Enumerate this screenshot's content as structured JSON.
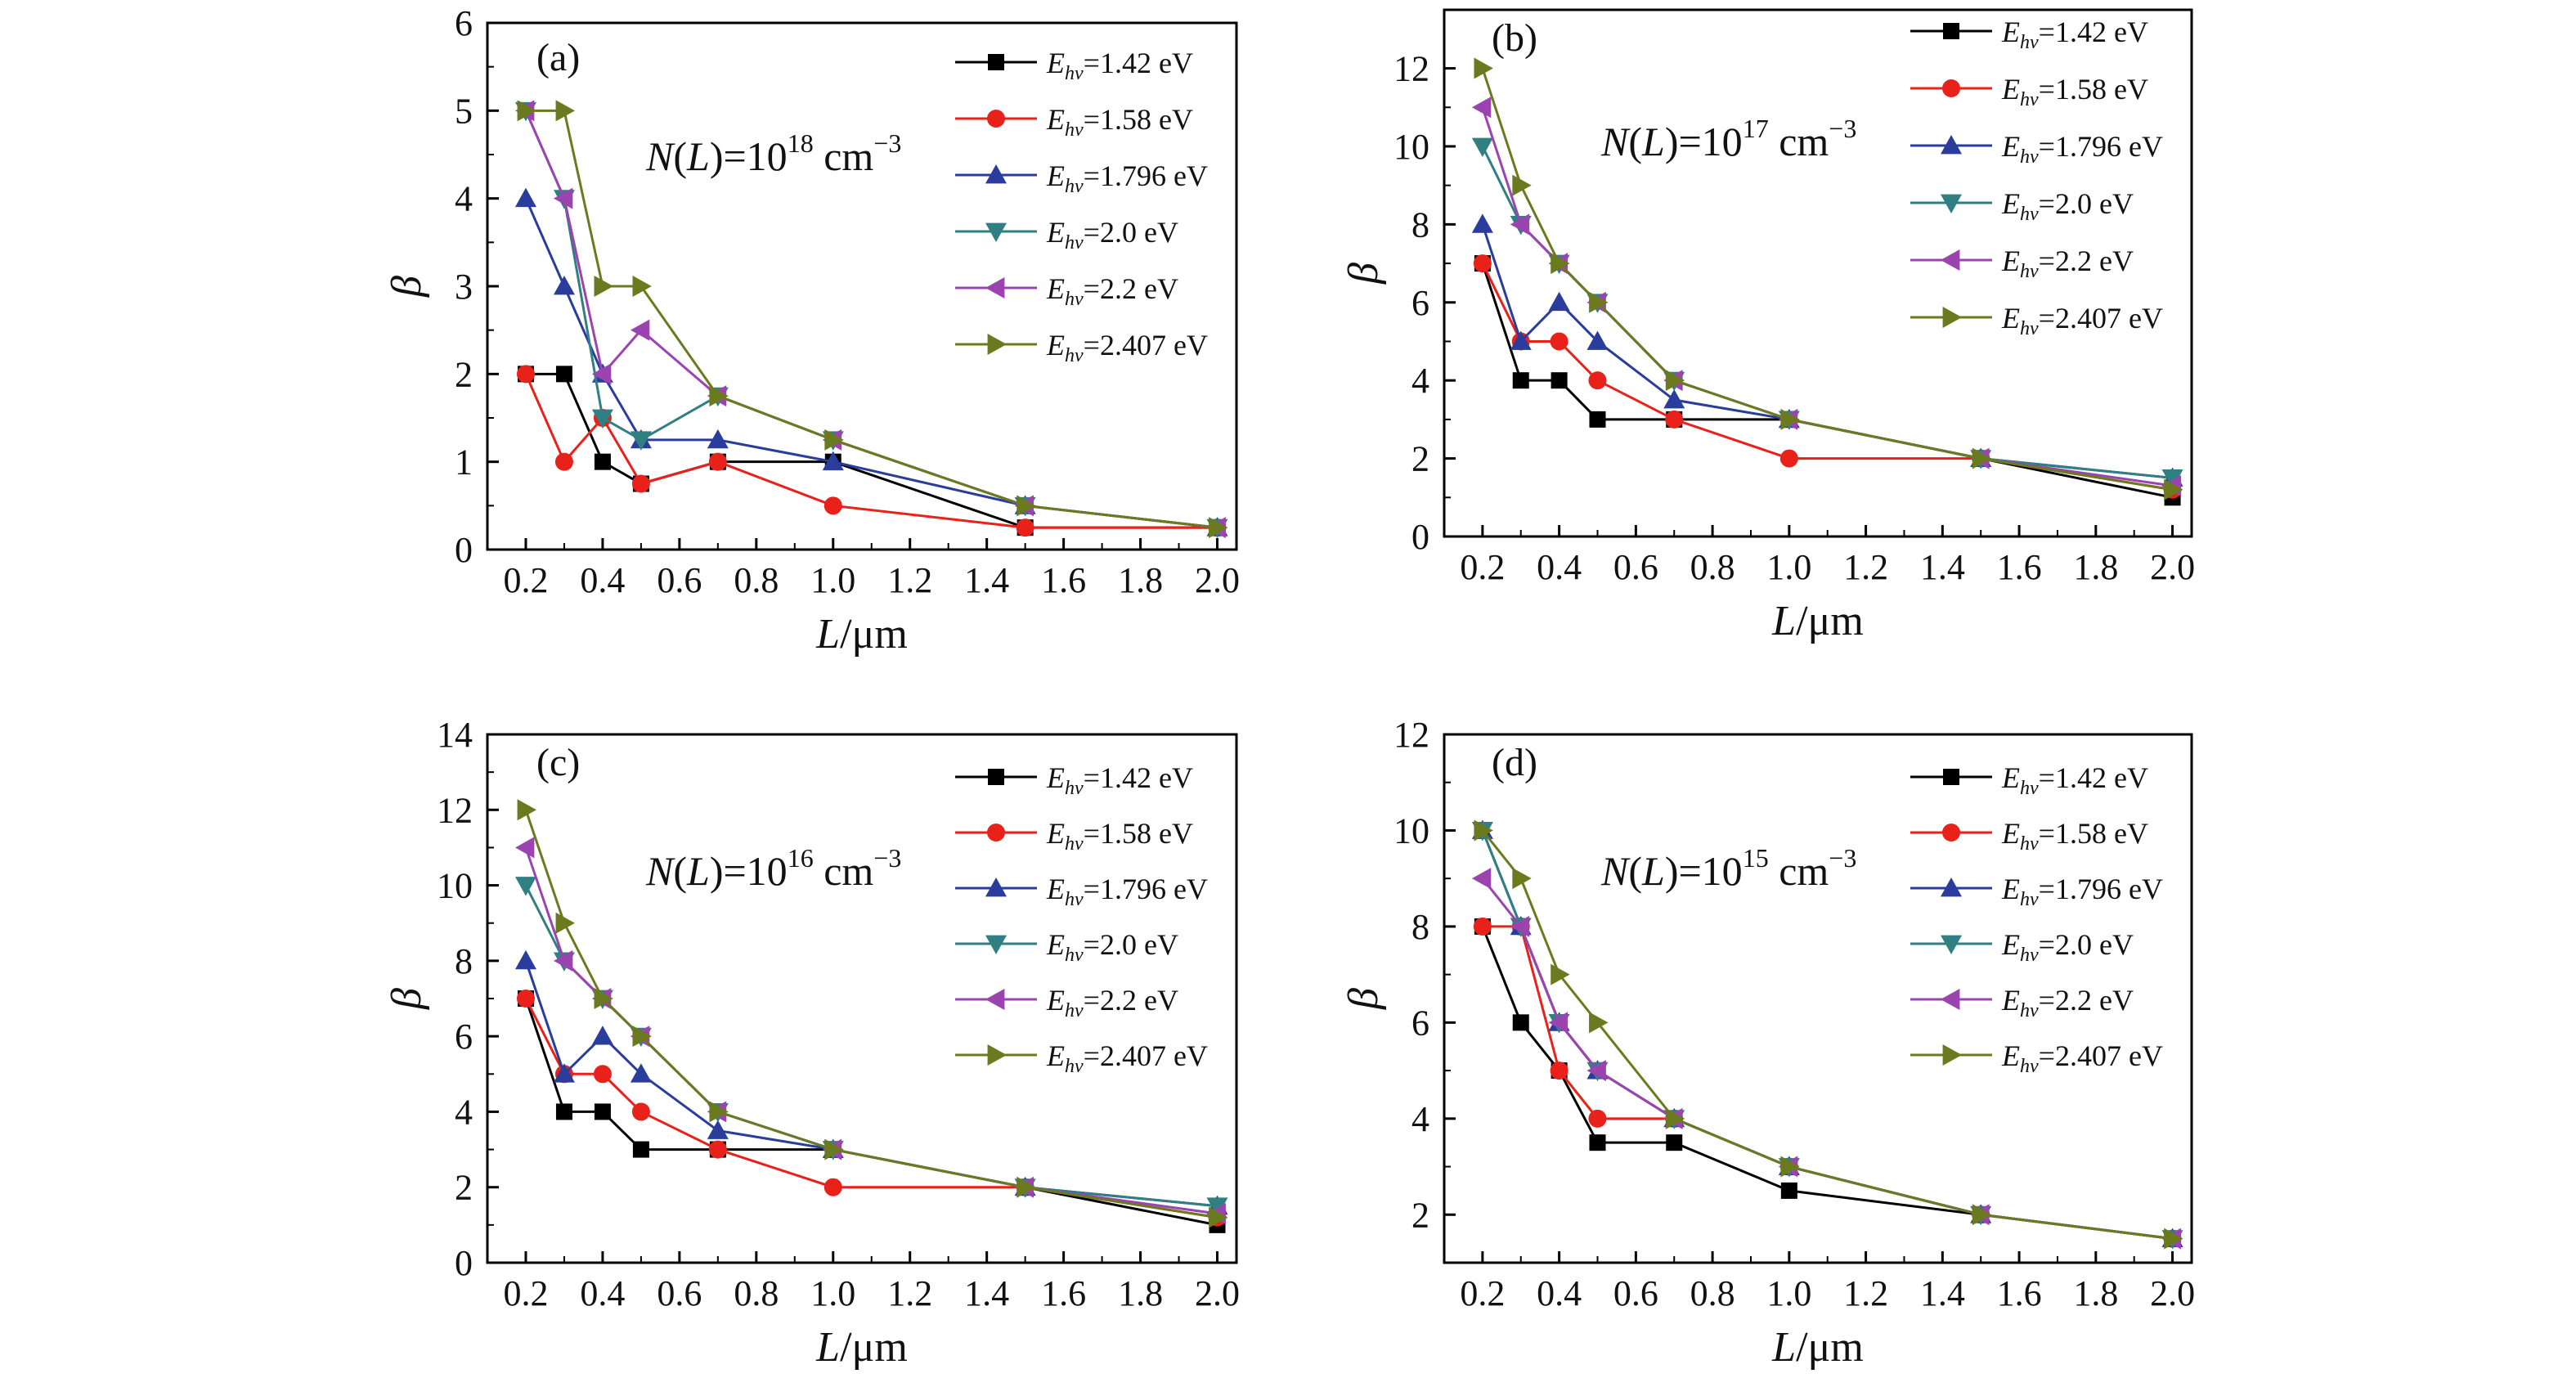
{
  "chart_data": [
    {
      "type": "line",
      "panel_label": "(a)",
      "annotation": {
        "prefix": "N(L)=10",
        "exp": "18",
        "unit": " cm",
        "unit_exp": "−3"
      },
      "xlabel": "L/μm",
      "ylabel": "β",
      "xlim": [
        0.1,
        2.05
      ],
      "ylim": [
        0,
        6
      ],
      "xticks": [
        "0.2",
        "0.4",
        "0.6",
        "0.8",
        "1.0",
        "1.2",
        "1.4",
        "1.6",
        "1.8",
        "2.0"
      ],
      "yticks": [
        "0",
        "1",
        "2",
        "3",
        "4",
        "5",
        "6"
      ],
      "x": [
        0.2,
        0.3,
        0.4,
        0.5,
        0.7,
        1.0,
        1.5,
        2.0
      ],
      "legend_position": "top-right",
      "series": [
        {
          "sym": "E",
          "sub": "hv",
          "rest": "=1.42 eV",
          "color": "#000000",
          "marker": "square",
          "values": [
            2,
            2,
            1,
            0.75,
            1,
            1,
            0.25,
            0.25
          ]
        },
        {
          "sym": "E",
          "sub": "hv",
          "rest": "=1.58 eV",
          "color": "#e8211b",
          "marker": "circle",
          "values": [
            2,
            1,
            1.5,
            0.75,
            1,
            0.5,
            0.25,
            0.25
          ]
        },
        {
          "sym": "E",
          "sub": "hv",
          "rest": "=1.796 eV",
          "color": "#2a3c9c",
          "marker": "triangle-up",
          "values": [
            4,
            3,
            2,
            1.25,
            1.25,
            1,
            0.5,
            0.25
          ]
        },
        {
          "sym": "E",
          "sub": "hv",
          "rest": "=2.0 eV",
          "color": "#2f7f83",
          "marker": "triangle-down",
          "values": [
            5,
            4,
            1.5,
            1.25,
            1.75,
            1.25,
            0.5,
            0.25
          ]
        },
        {
          "sym": "E",
          "sub": "hv",
          "rest": "=2.2 eV",
          "color": "#9b44b0",
          "marker": "triangle-left",
          "values": [
            5,
            4,
            2,
            2.5,
            1.75,
            1.25,
            0.5,
            0.25
          ]
        },
        {
          "sym": "E",
          "sub": "hv",
          "rest": "=2.407 eV",
          "color": "#6b7a1f",
          "marker": "triangle-right",
          "values": [
            5,
            5,
            3,
            3,
            1.75,
            1.25,
            0.5,
            0.25
          ]
        }
      ]
    },
    {
      "type": "line",
      "panel_label": "(b)",
      "annotation": {
        "prefix": "N(L)=10",
        "exp": "17",
        "unit": " cm",
        "unit_exp": "−3"
      },
      "xlabel": "L/μm",
      "ylabel": "β",
      "xlim": [
        0.1,
        2.05
      ],
      "ylim": [
        0,
        13.5
      ],
      "xticks": [
        "0.2",
        "0.4",
        "0.6",
        "0.8",
        "1.0",
        "1.2",
        "1.4",
        "1.6",
        "1.8",
        "2.0"
      ],
      "yticks": [
        "0",
        "2",
        "4",
        "6",
        "8",
        "10",
        "12"
      ],
      "x": [
        0.2,
        0.3,
        0.4,
        0.5,
        0.7,
        1.0,
        1.5,
        2.0
      ],
      "legend_position": "top-right",
      "series": [
        {
          "sym": "E",
          "sub": "hv",
          "rest": "=1.42 eV",
          "color": "#000000",
          "marker": "square",
          "values": [
            7,
            4,
            4,
            3,
            3,
            3,
            2,
            1
          ]
        },
        {
          "sym": "E",
          "sub": "hv",
          "rest": "=1.58 eV",
          "color": "#e8211b",
          "marker": "circle",
          "values": [
            7,
            5,
            5,
            4,
            3,
            2,
            2,
            1.2
          ]
        },
        {
          "sym": "E",
          "sub": "hv",
          "rest": "=1.796 eV",
          "color": "#2a3c9c",
          "marker": "triangle-up",
          "values": [
            8,
            5,
            6,
            5,
            3.5,
            3,
            2,
            1.5
          ]
        },
        {
          "sym": "E",
          "sub": "hv",
          "rest": "=2.0 eV",
          "color": "#2f7f83",
          "marker": "triangle-down",
          "values": [
            10,
            8,
            7,
            6,
            4,
            3,
            2,
            1.5
          ]
        },
        {
          "sym": "E",
          "sub": "hv",
          "rest": "=2.2 eV",
          "color": "#9b44b0",
          "marker": "triangle-left",
          "values": [
            11,
            8,
            7,
            6,
            4,
            3,
            2,
            1.3
          ]
        },
        {
          "sym": "E",
          "sub": "hv",
          "rest": "=2.407 eV",
          "color": "#6b7a1f",
          "marker": "triangle-right",
          "values": [
            12,
            9,
            7,
            6,
            4,
            3,
            2,
            1.2
          ]
        }
      ]
    },
    {
      "type": "line",
      "panel_label": "(c)",
      "annotation": {
        "prefix": "N(L)=10",
        "exp": "16",
        "unit": " cm",
        "unit_exp": "−3"
      },
      "xlabel": "L/μm",
      "ylabel": "β",
      "xlim": [
        0.1,
        2.05
      ],
      "ylim": [
        0,
        14
      ],
      "xticks": [
        "0.2",
        "0.4",
        "0.6",
        "0.8",
        "1.0",
        "1.2",
        "1.4",
        "1.6",
        "1.8",
        "2.0"
      ],
      "yticks": [
        "0",
        "2",
        "4",
        "6",
        "8",
        "10",
        "12",
        "14"
      ],
      "x": [
        0.2,
        0.3,
        0.4,
        0.5,
        0.7,
        1.0,
        1.5,
        2.0
      ],
      "legend_position": "top-right",
      "series": [
        {
          "sym": "E",
          "sub": "hv",
          "rest": "=1.42 eV",
          "color": "#000000",
          "marker": "square",
          "values": [
            7,
            4,
            4,
            3,
            3,
            3,
            2,
            1
          ]
        },
        {
          "sym": "E",
          "sub": "hv",
          "rest": "=1.58 eV",
          "color": "#e8211b",
          "marker": "circle",
          "values": [
            7,
            5,
            5,
            4,
            3,
            2,
            2,
            1.2
          ]
        },
        {
          "sym": "E",
          "sub": "hv",
          "rest": "=1.796 eV",
          "color": "#2a3c9c",
          "marker": "triangle-up",
          "values": [
            8,
            5,
            6,
            5,
            3.5,
            3,
            2,
            1.5
          ]
        },
        {
          "sym": "E",
          "sub": "hv",
          "rest": "=2.0 eV",
          "color": "#2f7f83",
          "marker": "triangle-down",
          "values": [
            10,
            8,
            7,
            6,
            4,
            3,
            2,
            1.5
          ]
        },
        {
          "sym": "E",
          "sub": "hv",
          "rest": "=2.2 eV",
          "color": "#9b44b0",
          "marker": "triangle-left",
          "values": [
            11,
            8,
            7,
            6,
            4,
            3,
            2,
            1.3
          ]
        },
        {
          "sym": "E",
          "sub": "hv",
          "rest": "=2.407 eV",
          "color": "#6b7a1f",
          "marker": "triangle-right",
          "values": [
            12,
            9,
            7,
            6,
            4,
            3,
            2,
            1.2
          ]
        }
      ]
    },
    {
      "type": "line",
      "panel_label": "(d)",
      "annotation": {
        "prefix": "N(L)=10",
        "exp": "15",
        "unit": " cm",
        "unit_exp": "−3"
      },
      "xlabel": "L/μm",
      "ylabel": "β",
      "xlim": [
        0.1,
        2.05
      ],
      "ylim": [
        1,
        12
      ],
      "xticks": [
        "0.2",
        "0.4",
        "0.6",
        "0.8",
        "1.0",
        "1.2",
        "1.4",
        "1.6",
        "1.8",
        "2.0"
      ],
      "yticks": [
        "2",
        "4",
        "6",
        "8",
        "10",
        "12"
      ],
      "x": [
        0.2,
        0.3,
        0.4,
        0.5,
        0.7,
        1.0,
        1.5,
        2.0
      ],
      "legend_position": "top-right",
      "series": [
        {
          "sym": "E",
          "sub": "hv",
          "rest": "=1.42 eV",
          "color": "#000000",
          "marker": "square",
          "values": [
            8,
            6,
            5,
            3.5,
            3.5,
            2.5,
            2,
            1.5
          ]
        },
        {
          "sym": "E",
          "sub": "hv",
          "rest": "=1.58 eV",
          "color": "#e8211b",
          "marker": "circle",
          "values": [
            8,
            8,
            5,
            4,
            4,
            3,
            2,
            1.5
          ]
        },
        {
          "sym": "E",
          "sub": "hv",
          "rest": "=1.796 eV",
          "color": "#2a3c9c",
          "marker": "triangle-up",
          "values": [
            10,
            8,
            6,
            5,
            4,
            3,
            2,
            1.5
          ]
        },
        {
          "sym": "E",
          "sub": "hv",
          "rest": "=2.0 eV",
          "color": "#2f7f83",
          "marker": "triangle-down",
          "values": [
            10,
            8,
            6,
            5,
            4,
            3,
            2,
            1.5
          ]
        },
        {
          "sym": "E",
          "sub": "hv",
          "rest": "=2.2 eV",
          "color": "#9b44b0",
          "marker": "triangle-left",
          "values": [
            9,
            8,
            6,
            5,
            4,
            3,
            2,
            1.5
          ]
        },
        {
          "sym": "E",
          "sub": "hv",
          "rest": "=2.407 eV",
          "color": "#6b7a1f",
          "marker": "triangle-right",
          "values": [
            10,
            9,
            7,
            6,
            4,
            3,
            2,
            1.5
          ]
        }
      ]
    }
  ]
}
